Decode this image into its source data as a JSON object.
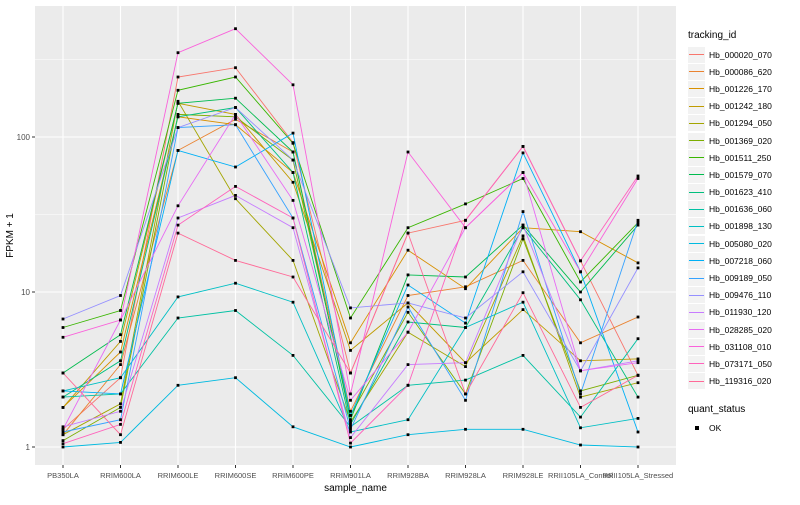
{
  "chart_data": {
    "type": "line",
    "title": "",
    "xlabel": "sample_name",
    "ylabel": "FPKM + 1",
    "y_scale": "log10",
    "ylim": [
      0.85,
      660
    ],
    "y_major_ticks": [
      1,
      10,
      100
    ],
    "y_tick_labels": [
      "1",
      "10",
      "100"
    ],
    "y_minor_ticks": [
      3.162,
      31.62,
      316.2
    ],
    "grid": "on",
    "panel_background": "#EBEBEB",
    "grid_color": "#FFFFFF",
    "point_color": "#000000",
    "categories": [
      "PB350LA",
      "RRIM600LA",
      "RRIM600LE",
      "RRIM600SE",
      "RRIM600PE",
      "RRIM901LA",
      "RRIM928BA",
      "RRIM928LA",
      "RRIM928LE",
      "RRII105LA_Control",
      "RRII105LA_Stressed"
    ],
    "series": [
      {
        "name": "Hb_000020_070",
        "color": "#F8766D",
        "values": [
          1.3,
          2.8,
          244,
          280,
          92,
          3.0,
          24,
          29,
          87,
          15.9,
          2.9
        ]
      },
      {
        "name": "Hb_000086_620",
        "color": "#EA8331",
        "values": [
          1.2,
          3.4,
          82,
          130,
          80,
          1.7,
          9.5,
          10.8,
          16,
          4.7,
          6.9
        ]
      },
      {
        "name": "Hb_001226_170",
        "color": "#D89000",
        "values": [
          1.8,
          4.1,
          135,
          120,
          59,
          4.7,
          18.6,
          10.5,
          26,
          24.5,
          15.4
        ]
      },
      {
        "name": "Hb_001242_180",
        "color": "#C09B00",
        "values": [
          1.8,
          4.8,
          165,
          140,
          51,
          4.2,
          8.5,
          3.5,
          7.7,
          3.6,
          3.7
        ]
      },
      {
        "name": "Hb_001294_050",
        "color": "#A3A500",
        "values": [
          1.2,
          1.9,
          170,
          40,
          16,
          1.45,
          5.5,
          3.3,
          23,
          2.1,
          2.6
        ]
      },
      {
        "name": "Hb_001369_020",
        "color": "#7CAE00",
        "values": [
          1.1,
          1.8,
          140,
          135,
          71,
          1.6,
          7.4,
          2.2,
          22,
          2.3,
          2.9
        ]
      },
      {
        "name": "Hb_001511_250",
        "color": "#39B600",
        "values": [
          5.9,
          7.6,
          200,
          244,
          91,
          6.8,
          26,
          37,
          54,
          11.6,
          28
        ]
      },
      {
        "name": "Hb_001579_070",
        "color": "#00BB4E",
        "values": [
          3.0,
          5.3,
          165,
          178,
          80,
          1.5,
          12.9,
          12.5,
          27,
          10,
          27
        ]
      },
      {
        "name": "Hb_001623_410",
        "color": "#00BF7D",
        "values": [
          2.1,
          3.6,
          135,
          155,
          59,
          1.4,
          6.4,
          5.9,
          26,
          8.9,
          2.1
        ]
      },
      {
        "name": "Hb_001636_060",
        "color": "#00C1A3",
        "values": [
          2.1,
          2.2,
          6.8,
          7.6,
          3.9,
          1.35,
          2.5,
          2.7,
          3.9,
          1.56,
          5.0
        ]
      },
      {
        "name": "Hb_001898_130",
        "color": "#00BFC4",
        "values": [
          2.3,
          2.8,
          9.3,
          11.4,
          8.6,
          1.25,
          1.5,
          5.9,
          8.6,
          1.33,
          1.53
        ]
      },
      {
        "name": "Hb_005080_020",
        "color": "#00BAE0",
        "values": [
          1.0,
          1.07,
          2.5,
          2.8,
          1.35,
          1.0,
          1.2,
          1.3,
          1.3,
          1.03,
          1.0
        ]
      },
      {
        "name": "Hb_007218_060",
        "color": "#00B0F6",
        "values": [
          2.3,
          2.2,
          82,
          64,
          106,
          1.6,
          11.1,
          6.3,
          79,
          13.5,
          1.25
        ]
      },
      {
        "name": "Hb_009189_050",
        "color": "#35A2FF",
        "values": [
          1.25,
          1.5,
          115,
          120,
          30,
          1.3,
          8.0,
          2.0,
          33,
          2.2,
          29
        ]
      },
      {
        "name": "Hb_009476_110",
        "color": "#9590FF",
        "values": [
          6.7,
          9.5,
          115,
          155,
          71,
          7.9,
          8.5,
          6.8,
          13.5,
          3.1,
          14.3
        ]
      },
      {
        "name": "Hb_011930_120",
        "color": "#C77CFF",
        "values": [
          1.35,
          1.7,
          30,
          42,
          26,
          1.15,
          3.4,
          3.5,
          27,
          3.1,
          3.6
        ]
      },
      {
        "name": "Hb_028285_020",
        "color": "#E76BF3",
        "values": [
          1.3,
          6.6,
          36,
          140,
          39,
          2.0,
          5.5,
          26,
          59,
          3.1,
          3.5
        ]
      },
      {
        "name": "Hb_031108_010",
        "color": "#FA62DB",
        "values": [
          5.1,
          6.6,
          350,
          500,
          217,
          2.2,
          80,
          26,
          59,
          13.5,
          54
        ]
      },
      {
        "name": "Hb_073171_050",
        "color": "#FF62BC",
        "values": [
          1.05,
          1.4,
          27,
          48,
          30,
          1.06,
          2.5,
          29,
          87,
          15.9,
          56
        ]
      },
      {
        "name": "Hb_119316_020",
        "color": "#FF6A98",
        "values": [
          3.0,
          1.2,
          24,
          16,
          12.5,
          3.0,
          24,
          2.2,
          9.9,
          1.8,
          2.9
        ]
      }
    ],
    "legend_position": "right"
  },
  "legend": {
    "color_legend_title": "tracking_id",
    "shape_legend_title": "quant_status",
    "shape_legend_items": [
      {
        "label": "OK",
        "shape": "square",
        "color": "#000000"
      }
    ]
  }
}
